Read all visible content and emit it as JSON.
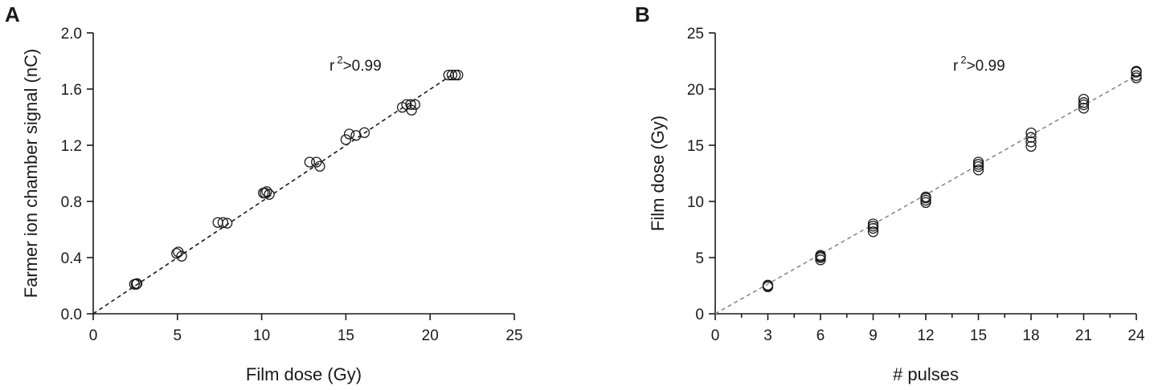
{
  "panels": [
    {
      "letter": "A",
      "annotation": {
        "base": "r",
        "sup": "2",
        "rest": ">0.99"
      }
    },
    {
      "letter": "B",
      "annotation": {
        "base": "r",
        "sup": "2",
        "rest": ">0.99"
      }
    }
  ],
  "chart_data": [
    {
      "type": "scatter",
      "title": "",
      "xlabel": "Film dose (Gy)",
      "ylabel": "Farmer ion chamber signal (nC)",
      "xlim": [
        0,
        25
      ],
      "ylim": [
        0,
        2.0
      ],
      "xticks": [
        0,
        5,
        10,
        15,
        20,
        25
      ],
      "xtick_labels": [
        "0",
        "5",
        "10",
        "15",
        "20",
        "25"
      ],
      "yticks": [
        0.0,
        0.4,
        0.8,
        1.2,
        1.6,
        2.0
      ],
      "ytick_labels": [
        "0.0",
        "0.4",
        "0.8",
        "1.2",
        "1.6",
        "2.0"
      ],
      "grid": false,
      "fit_line": {
        "style": "dashed",
        "color": "#1a1a1a",
        "x": [
          0,
          21.4
        ],
        "y": [
          0,
          1.71
        ]
      },
      "annotation": "r2>0.99",
      "series": [
        {
          "marker": "open-circle",
          "color": "#1a1a1a",
          "points": [
            [
              2.45,
              0.21
            ],
            [
              2.55,
              0.21
            ],
            [
              2.6,
              0.215
            ],
            [
              4.95,
              0.43
            ],
            [
              5.05,
              0.44
            ],
            [
              5.25,
              0.41
            ],
            [
              7.4,
              0.65
            ],
            [
              7.7,
              0.65
            ],
            [
              7.95,
              0.645
            ],
            [
              10.1,
              0.86
            ],
            [
              10.3,
              0.87
            ],
            [
              10.45,
              0.85
            ],
            [
              10.2,
              0.86
            ],
            [
              12.85,
              1.08
            ],
            [
              13.25,
              1.08
            ],
            [
              13.45,
              1.05
            ],
            [
              15.0,
              1.24
            ],
            [
              15.2,
              1.28
            ],
            [
              15.6,
              1.27
            ],
            [
              16.1,
              1.29
            ],
            [
              18.35,
              1.47
            ],
            [
              18.6,
              1.49
            ],
            [
              18.85,
              1.49
            ],
            [
              18.9,
              1.45
            ],
            [
              19.1,
              1.49
            ],
            [
              21.1,
              1.7
            ],
            [
              21.3,
              1.7
            ],
            [
              21.5,
              1.7
            ],
            [
              21.65,
              1.7
            ]
          ]
        }
      ]
    },
    {
      "type": "scatter",
      "title": "",
      "xlabel": "# pulses",
      "ylabel": "Film dose (Gy)",
      "xlim": [
        0,
        24
      ],
      "ylim": [
        0,
        25
      ],
      "xticks": [
        0,
        3,
        6,
        9,
        12,
        15,
        18,
        21,
        24
      ],
      "xtick_labels": [
        "0",
        "3",
        "6",
        "9",
        "12",
        "15",
        "18",
        "21",
        "24"
      ],
      "x_minor_ticks": [
        1.5,
        4.5,
        7.5,
        10.5,
        13.5,
        16.5,
        19.5,
        22.5
      ],
      "yticks": [
        0,
        5,
        10,
        15,
        20,
        25
      ],
      "ytick_labels": [
        "0",
        "5",
        "10",
        "15",
        "20",
        "25"
      ],
      "grid": false,
      "fit_line": {
        "style": "dashed",
        "color": "#8a8a8a",
        "x": [
          0,
          24
        ],
        "y": [
          0,
          21.2
        ]
      },
      "annotation": "r2>0.99",
      "series": [
        {
          "marker": "open-circle",
          "color": "#1a1a1a",
          "points": [
            [
              3,
              2.4
            ],
            [
              3,
              2.5
            ],
            [
              3,
              2.55
            ],
            [
              6,
              4.8
            ],
            [
              6,
              5.0
            ],
            [
              6,
              5.1
            ],
            [
              6,
              5.2
            ],
            [
              9,
              7.3
            ],
            [
              9,
              7.6
            ],
            [
              9,
              7.8
            ],
            [
              9,
              8.0
            ],
            [
              12,
              9.9
            ],
            [
              12,
              10.1
            ],
            [
              12,
              10.3
            ],
            [
              12,
              10.4
            ],
            [
              15,
              12.8
            ],
            [
              15,
              13.1
            ],
            [
              15,
              13.3
            ],
            [
              15,
              13.5
            ],
            [
              18,
              14.9
            ],
            [
              18,
              15.3
            ],
            [
              18,
              15.7
            ],
            [
              18,
              16.1
            ],
            [
              21,
              18.3
            ],
            [
              21,
              18.6
            ],
            [
              21,
              18.8
            ],
            [
              21,
              19.1
            ],
            [
              24,
              21.0
            ],
            [
              24,
              21.2
            ],
            [
              24,
              21.5
            ],
            [
              24,
              21.6
            ]
          ]
        }
      ]
    }
  ]
}
